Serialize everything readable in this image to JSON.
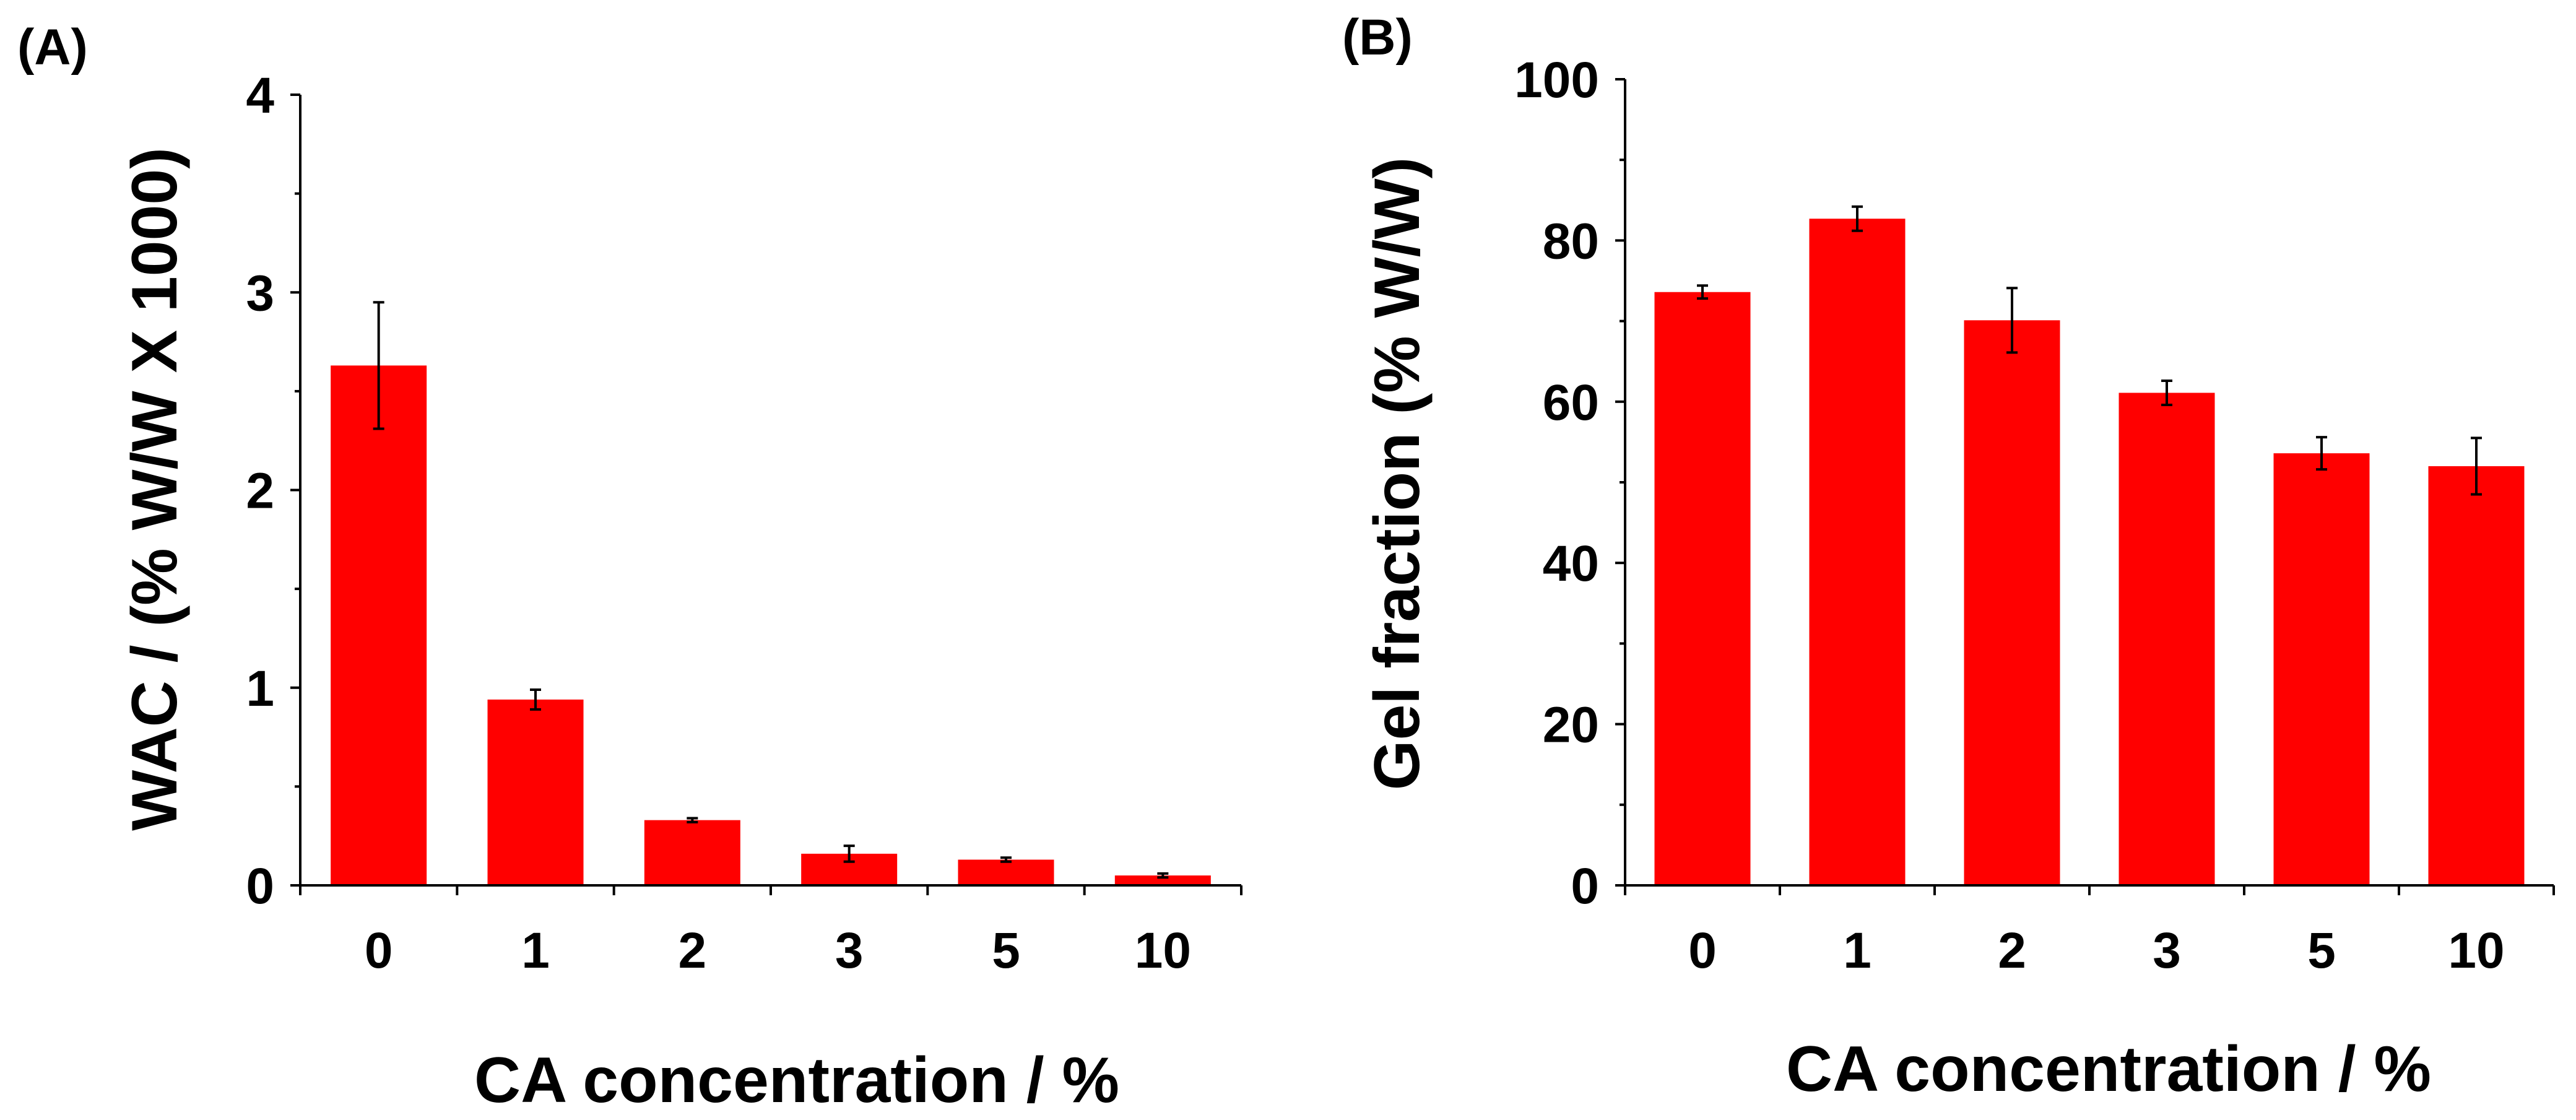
{
  "chart_data": [
    {
      "type": "bar",
      "panel_label": "(A)",
      "categories": [
        "0",
        "1",
        "2",
        "3",
        "5",
        "10"
      ],
      "values": [
        2.63,
        0.94,
        0.33,
        0.16,
        0.13,
        0.05
      ],
      "errors": [
        0.32,
        0.05,
        0.01,
        0.04,
        0.01,
        0.01
      ],
      "title": "",
      "xlabel": "CA concentration / %",
      "ylabel": "WAC / (% W/W X 1000)",
      "ylim": [
        0,
        4
      ],
      "yticks": [
        "0",
        "1",
        "2",
        "3",
        "4"
      ],
      "minor_ticks_per_major": 2,
      "bar_color": "#ff0000",
      "grid": false,
      "legend": "none"
    },
    {
      "type": "bar",
      "panel_label": "(B)",
      "categories": [
        "0",
        "1",
        "2",
        "3",
        "5",
        "10"
      ],
      "values": [
        73.6,
        82.7,
        70.1,
        61.1,
        53.6,
        52.0
      ],
      "errors": [
        0.8,
        1.5,
        4.0,
        1.5,
        2.0,
        3.5
      ],
      "title": "",
      "xlabel": "CA concentration / %",
      "ylabel": "Gel fraction (% W/W)",
      "ylim": [
        0,
        100
      ],
      "yticks": [
        "0",
        "20",
        "40",
        "60",
        "80",
        "100"
      ],
      "minor_ticks_per_major": 2,
      "bar_color": "#ff0000",
      "grid": false,
      "legend": "none"
    }
  ]
}
